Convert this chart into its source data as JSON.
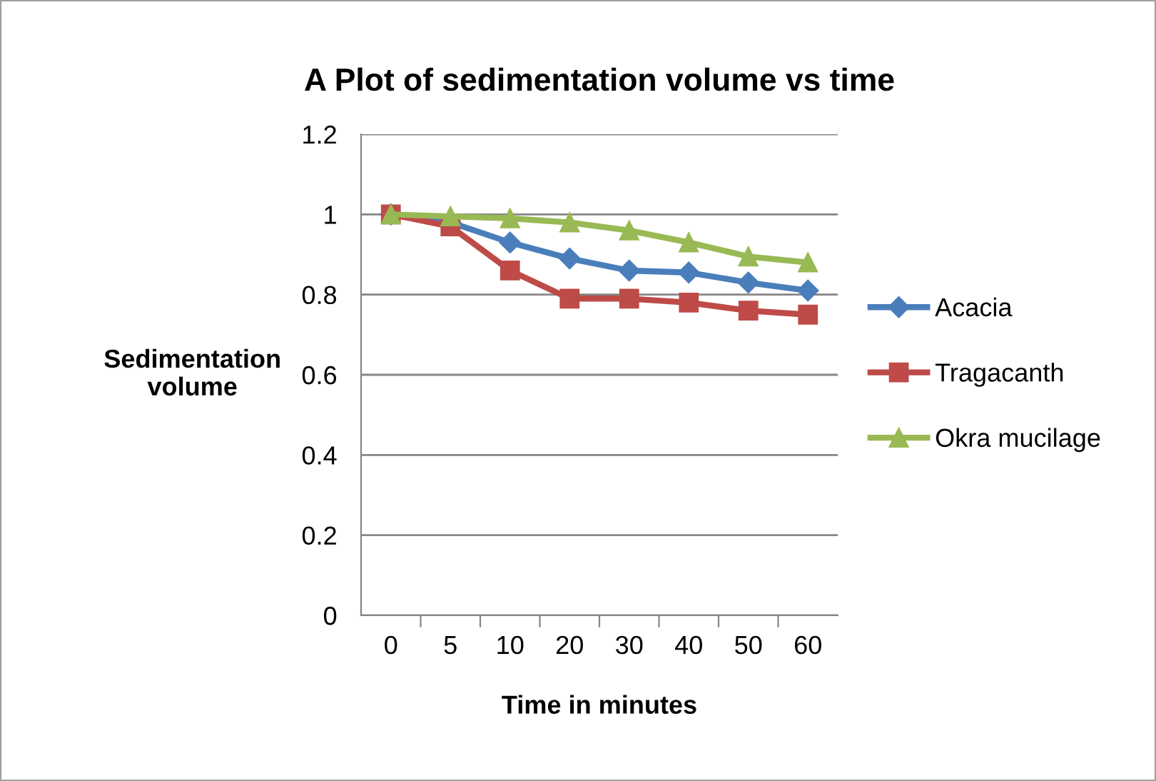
{
  "chart_data": {
    "type": "line",
    "title": "A Plot of sedimentation volume vs time",
    "xlabel": "Time in minutes",
    "ylabel": "Sedimentation\nvolume",
    "categories": [
      "0",
      "5",
      "10",
      "20",
      "30",
      "40",
      "50",
      "60"
    ],
    "series": [
      {
        "name": "Acacia",
        "color": "#4a7ebb",
        "marker": "diamond",
        "values": [
          1,
          0.98,
          0.93,
          0.89,
          0.86,
          0.855,
          0.83,
          0.81
        ]
      },
      {
        "name": "Tragacanth",
        "color": "#be4b48",
        "marker": "square",
        "values": [
          1,
          0.97,
          0.86,
          0.79,
          0.79,
          0.78,
          0.76,
          0.75
        ]
      },
      {
        "name": "Okra mucilage",
        "color": "#98b954",
        "marker": "triangle",
        "values": [
          1,
          0.995,
          0.99,
          0.98,
          0.96,
          0.93,
          0.895,
          0.88
        ]
      }
    ],
    "ylim": [
      0,
      1.2
    ],
    "yticks": [
      0,
      0.2,
      0.4,
      0.6,
      0.8,
      1,
      1.2
    ],
    "grid": "y",
    "legend": "right",
    "line_style": "solid"
  }
}
